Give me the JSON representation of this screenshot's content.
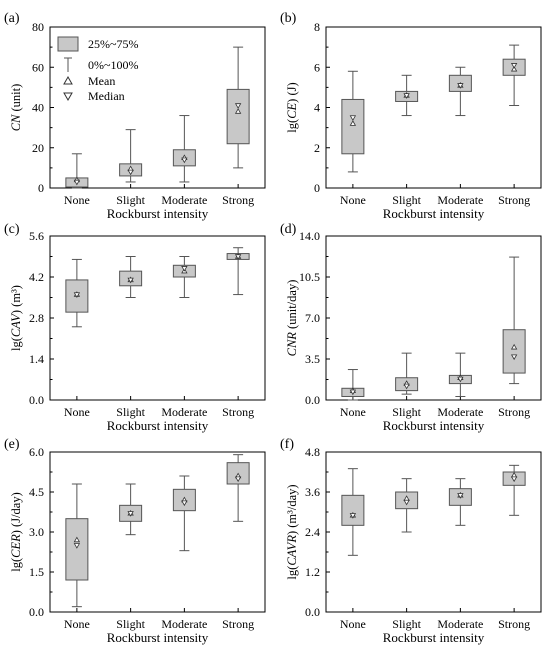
{
  "legend": {
    "box": "25%~75%",
    "whisker": "0%~100%",
    "mean": "Mean",
    "median": "Median"
  },
  "colors": {
    "box_fill": "#c8c8c8",
    "stroke": "#555555",
    "axis": "#000000"
  },
  "chart_data": [
    {
      "id": "a",
      "panel_label": "(a)",
      "type": "box",
      "ylabel_pre": "",
      "ylabel_var": "CN",
      "ylabel_post": " (unit)",
      "xlabel": "Rockburst intensity",
      "categories": [
        "None",
        "Slight",
        "Moderate",
        "Strong"
      ],
      "ylim": [
        0,
        80
      ],
      "yticks": [
        0,
        20,
        40,
        60,
        80
      ],
      "ytick_labels": [
        "0",
        "20",
        "40",
        "60",
        "80"
      ],
      "boxes": [
        {
          "min": 0,
          "q1": 0.5,
          "median": 3,
          "q3": 5,
          "max": 17,
          "mean": 4
        },
        {
          "min": 3,
          "q1": 6,
          "median": 8,
          "q3": 12,
          "max": 29,
          "mean": 9.5
        },
        {
          "min": 3,
          "q1": 11,
          "median": 14,
          "q3": 19,
          "max": 36,
          "mean": 15
        },
        {
          "min": 10,
          "q1": 22,
          "median": 41,
          "q3": 49,
          "max": 70,
          "mean": 38
        }
      ],
      "legend": true
    },
    {
      "id": "b",
      "panel_label": "(b)",
      "type": "box",
      "ylabel_pre": "lg(",
      "ylabel_var": "CE",
      "ylabel_post": ") (J)",
      "xlabel": "Rockburst intensity",
      "categories": [
        "None",
        "Slight",
        "Moderate",
        "Strong"
      ],
      "ylim": [
        0,
        8
      ],
      "yticks": [
        0,
        2,
        4,
        6,
        8
      ],
      "ytick_labels": [
        "0",
        "2",
        "4",
        "6",
        "8"
      ],
      "boxes": [
        {
          "min": 0.8,
          "q1": 1.7,
          "median": 3.5,
          "q3": 4.4,
          "max": 5.8,
          "mean": 3.2
        },
        {
          "min": 3.6,
          "q1": 4.3,
          "median": 4.6,
          "q3": 4.8,
          "max": 5.6,
          "mean": 4.6
        },
        {
          "min": 3.6,
          "q1": 4.8,
          "median": 5.1,
          "q3": 5.6,
          "max": 6.0,
          "mean": 5.1
        },
        {
          "min": 4.1,
          "q1": 5.6,
          "median": 6.1,
          "q3": 6.4,
          "max": 7.1,
          "mean": 5.9
        }
      ]
    },
    {
      "id": "c",
      "panel_label": "(c)",
      "type": "box",
      "ylabel_pre": "lg(",
      "ylabel_var": "CAV",
      "ylabel_post": ") (m³)",
      "xlabel": "Rockburst intensity",
      "categories": [
        "None",
        "Slight",
        "Moderate",
        "Strong"
      ],
      "ylim": [
        0,
        5.6
      ],
      "yticks": [
        0,
        1.4,
        2.8,
        4.2,
        5.6
      ],
      "ytick_labels": [
        "0.0",
        "1.4",
        "2.8",
        "4.2",
        "5.6"
      ],
      "boxes": [
        {
          "min": 2.5,
          "q1": 3.0,
          "median": 3.6,
          "q3": 4.1,
          "max": 4.8,
          "mean": 3.6
        },
        {
          "min": 3.5,
          "q1": 3.9,
          "median": 4.1,
          "q3": 4.4,
          "max": 4.9,
          "mean": 4.1
        },
        {
          "min": 3.5,
          "q1": 4.2,
          "median": 4.5,
          "q3": 4.6,
          "max": 4.9,
          "mean": 4.4
        },
        {
          "min": 3.6,
          "q1": 4.8,
          "median": 4.9,
          "q3": 5.0,
          "max": 5.2,
          "mean": 4.9
        }
      ]
    },
    {
      "id": "d",
      "panel_label": "(d)",
      "type": "box",
      "ylabel_pre": "",
      "ylabel_var": "CNR",
      "ylabel_post": " (unit/day)",
      "xlabel": "Rockburst intensity",
      "categories": [
        "None",
        "Slight",
        "Moderate",
        "Strong"
      ],
      "ylim": [
        0,
        14
      ],
      "yticks": [
        0,
        3.5,
        7,
        10.5,
        14
      ],
      "ytick_labels": [
        "0.0",
        "3.5",
        "7.0",
        "10.5",
        "14.0"
      ],
      "boxes": [
        {
          "min": 0,
          "q1": 0.3,
          "median": 0.7,
          "q3": 1.0,
          "max": 2.6,
          "mean": 0.8
        },
        {
          "min": 0.5,
          "q1": 0.8,
          "median": 1.2,
          "q3": 1.9,
          "max": 4.0,
          "mean": 1.4
        },
        {
          "min": 0.3,
          "q1": 1.4,
          "median": 1.8,
          "q3": 2.1,
          "max": 4.0,
          "mean": 1.9
        },
        {
          "min": 1.4,
          "q1": 2.3,
          "median": 3.7,
          "q3": 6.0,
          "max": 12.2,
          "mean": 4.5
        }
      ]
    },
    {
      "id": "e",
      "panel_label": "(e)",
      "type": "box",
      "ylabel_pre": "lg(",
      "ylabel_var": "CER",
      "ylabel_post": ") (J/day)",
      "xlabel": "Rockburst intensity",
      "categories": [
        "None",
        "Slight",
        "Moderate",
        "Strong"
      ],
      "ylim": [
        0,
        6
      ],
      "yticks": [
        0,
        1.5,
        3,
        4.5,
        6
      ],
      "ytick_labels": [
        "0.0",
        "1.5",
        "3.0",
        "4.5",
        "6.0"
      ],
      "boxes": [
        {
          "min": 0.2,
          "q1": 1.2,
          "median": 2.5,
          "q3": 3.5,
          "max": 4.8,
          "mean": 2.7
        },
        {
          "min": 2.9,
          "q1": 3.4,
          "median": 3.7,
          "q3": 4.0,
          "max": 4.8,
          "mean": 3.7
        },
        {
          "min": 2.3,
          "q1": 3.8,
          "median": 4.1,
          "q3": 4.6,
          "max": 5.1,
          "mean": 4.2
        },
        {
          "min": 3.4,
          "q1": 4.8,
          "median": 5.0,
          "q3": 5.6,
          "max": 5.9,
          "mean": 5.1
        }
      ]
    },
    {
      "id": "f",
      "panel_label": "(f)",
      "type": "box",
      "ylabel_pre": "lg(",
      "ylabel_var": "CAVR",
      "ylabel_post": ") (m³/day)",
      "xlabel": "Rockburst intensity",
      "categories": [
        "None",
        "Slight",
        "Moderate",
        "Strong"
      ],
      "ylim": [
        0,
        4.8
      ],
      "yticks": [
        0,
        1.2,
        2.4,
        3.6,
        4.8
      ],
      "ytick_labels": [
        "0.0",
        "1.2",
        "2.4",
        "3.6",
        "4.8"
      ],
      "boxes": [
        {
          "min": 1.7,
          "q1": 2.6,
          "median": 2.9,
          "q3": 3.5,
          "max": 4.3,
          "mean": 2.9
        },
        {
          "min": 2.4,
          "q1": 3.1,
          "median": 3.3,
          "q3": 3.6,
          "max": 4.0,
          "mean": 3.4
        },
        {
          "min": 2.6,
          "q1": 3.2,
          "median": 3.5,
          "q3": 3.7,
          "max": 4.0,
          "mean": 3.5
        },
        {
          "min": 2.9,
          "q1": 3.8,
          "median": 4.0,
          "q3": 4.2,
          "max": 4.4,
          "mean": 4.1
        }
      ]
    }
  ]
}
